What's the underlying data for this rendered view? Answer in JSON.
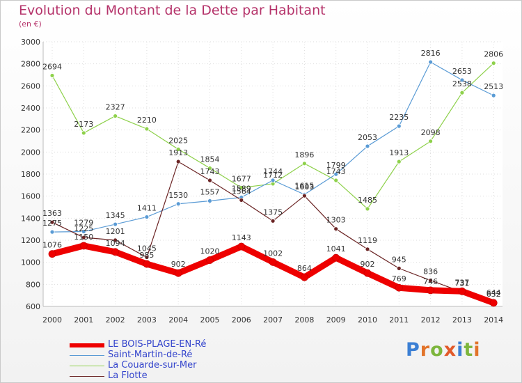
{
  "title": "Evolution du Montant de la Dette par Habitant",
  "unit": "(en €)",
  "logo_letters": [
    "P",
    "r",
    "o",
    "x",
    "i",
    "t",
    "i"
  ],
  "logo_colors": [
    "#3b7fd4",
    "#e2742a",
    "#7db63d",
    "#e25a2a",
    "#3b7fd4",
    "#7db63d",
    "#e2742a"
  ],
  "chart_data": {
    "type": "line",
    "x": [
      "2000",
      "2001",
      "2002",
      "2003",
      "2004",
      "2005",
      "2006",
      "2007",
      "2008",
      "2009",
      "2010",
      "2011",
      "2012",
      "2013",
      "2014"
    ],
    "ylim": [
      600,
      3000
    ],
    "yticks": [
      600,
      800,
      1000,
      1200,
      1400,
      1600,
      1800,
      2000,
      2200,
      2400,
      2600,
      2800,
      3000
    ],
    "grid": true,
    "legend_position": "bottom-left",
    "series": [
      {
        "name": "LE BOIS-PLAGE-EN-Ré",
        "color": "#ee0000",
        "values": [
          1076,
          1150,
          1094,
          985,
          902,
          1020,
          1143,
          1002,
          864,
          1041,
          902,
          769,
          746,
          737,
          632
        ]
      },
      {
        "name": "Saint-Martin-de-Ré",
        "color": "#5a9bd5",
        "values": [
          1275,
          1279,
          1345,
          1411,
          1530,
          1557,
          1589,
          1744,
          1615,
          1799,
          2053,
          2235,
          2816,
          2653,
          2513
        ]
      },
      {
        "name": "La Couarde-sur-Mer",
        "color": "#8ed14b",
        "values": [
          2694,
          2173,
          2327,
          2210,
          2025,
          1854,
          1677,
          1712,
          1896,
          1743,
          1485,
          1913,
          2098,
          2538,
          2806
        ]
      },
      {
        "name": "La Flotte",
        "color": "#6b2424",
        "values": [
          1363,
          1225,
          1201,
          1045,
          1913,
          1743,
          1564,
          1375,
          1603,
          1303,
          1119,
          945,
          836,
          731,
          644
        ]
      }
    ]
  }
}
